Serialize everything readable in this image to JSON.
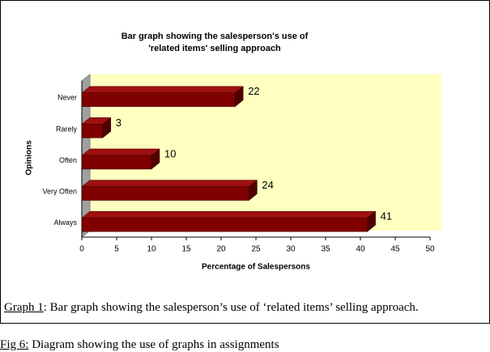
{
  "chart_data": {
    "type": "bar3d_horizontal",
    "title": [
      "Bar graph showing the salesperson's use of",
      "'related items' selling approach"
    ],
    "categories": [
      "Never",
      "Rarely",
      "Often",
      "Very Often",
      "Always"
    ],
    "values": [
      22,
      3,
      10,
      24,
      41
    ],
    "color": "#800000",
    "wall_color": "#ffffc0",
    "xlim": [
      0,
      50
    ],
    "xticks": [
      0,
      5,
      10,
      15,
      20,
      25,
      30,
      35,
      40,
      45,
      50
    ],
    "xlabel": "Percentage of Salespersons",
    "ylabel": "Opinions"
  },
  "caption": {
    "label": "Graph 1",
    "text": ": Bar graph showing the salesperson’s use of ‘related items’ selling approach."
  },
  "figure_caption": {
    "label": "Fig 6:",
    "text": " Diagram showing the use of graphs in assignments"
  }
}
